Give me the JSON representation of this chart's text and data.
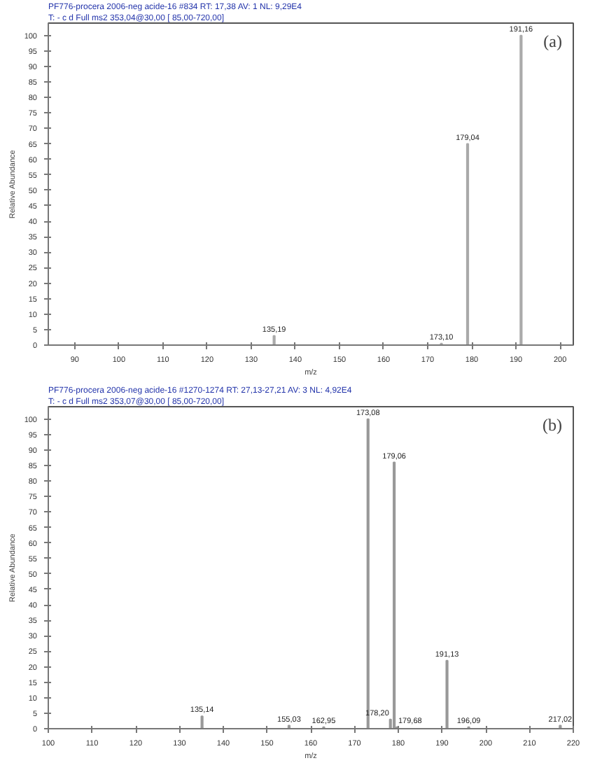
{
  "chart_data": [
    {
      "type": "bar",
      "title": "PF776-procera 2006-neg acide-16 #834  RT: 17,38  AV: 1  NL: 9,29E4",
      "subtitle": "T: - c d Full ms2 353,04@30,00 [ 85,00-720,00]",
      "xlabel": "m/z",
      "ylabel": "Relative Abundance",
      "annotations": [
        "(a)",
        {
          "text": "135,19",
          "x": 135.19,
          "y": 3
        },
        {
          "text": "173,10",
          "x": 173.1,
          "y": 0.5
        },
        {
          "text": "179,04",
          "x": 179.04,
          "y": 65
        },
        {
          "text": "191,16",
          "x": 191.16,
          "y": 100
        }
      ],
      "x": [
        135.19,
        173.1,
        179.04,
        191.16
      ],
      "values": [
        3,
        0.5,
        65,
        100
      ],
      "color": "#aaaaaa",
      "xlim": [
        84,
        203
      ],
      "xticks": [
        90,
        100,
        110,
        120,
        130,
        140,
        150,
        160,
        170,
        180,
        190,
        200
      ],
      "ylim": [
        0,
        104
      ],
      "yticks": [
        0,
        5,
        10,
        15,
        20,
        25,
        30,
        35,
        40,
        45,
        50,
        55,
        60,
        65,
        70,
        75,
        80,
        85,
        90,
        95,
        100
      ],
      "grid": false
    },
    {
      "type": "bar",
      "title": "PF776-procera 2006-neg acide-16 #1270-1274  RT: 27,13-27,21  AV: 3  NL: 4,92E4",
      "subtitle": "T: - c d Full ms2 353,07@30,00 [ 85,00-720,00]",
      "xlabel": "m/z",
      "ylabel": "Relative Abundance",
      "annotations": [
        "(b)",
        {
          "text": "135,14",
          "x": 135.14,
          "y": 4
        },
        {
          "text": "155,03",
          "x": 155.03,
          "y": 1
        },
        {
          "text": "162,95",
          "x": 162.95,
          "y": 0.5
        },
        {
          "text": "173,08",
          "x": 173.08,
          "y": 100
        },
        {
          "text": "178,20",
          "x": 178.2,
          "y": 3
        },
        {
          "text": "179,06",
          "x": 179.06,
          "y": 86
        },
        {
          "text": "179,68",
          "x": 179.68,
          "y": 0.5
        },
        {
          "text": "191,13",
          "x": 191.13,
          "y": 22
        },
        {
          "text": "196,09",
          "x": 196.09,
          "y": 0.5
        },
        {
          "text": "217,02",
          "x": 217.02,
          "y": 1
        }
      ],
      "x": [
        135.14,
        155.03,
        162.95,
        173.08,
        178.2,
        179.06,
        179.68,
        191.13,
        196.09,
        217.02
      ],
      "values": [
        4,
        1,
        0.5,
        100,
        3,
        86,
        0.5,
        22,
        0.5,
        1
      ],
      "color": "#999999",
      "xlim": [
        100,
        220
      ],
      "xticks": [
        100,
        110,
        120,
        130,
        140,
        150,
        160,
        170,
        180,
        190,
        200,
        210,
        220
      ],
      "ylim": [
        0,
        104
      ],
      "yticks": [
        0,
        5,
        10,
        15,
        20,
        25,
        30,
        35,
        40,
        45,
        50,
        55,
        60,
        65,
        70,
        75,
        80,
        85,
        90,
        95,
        100
      ],
      "grid": false
    }
  ]
}
